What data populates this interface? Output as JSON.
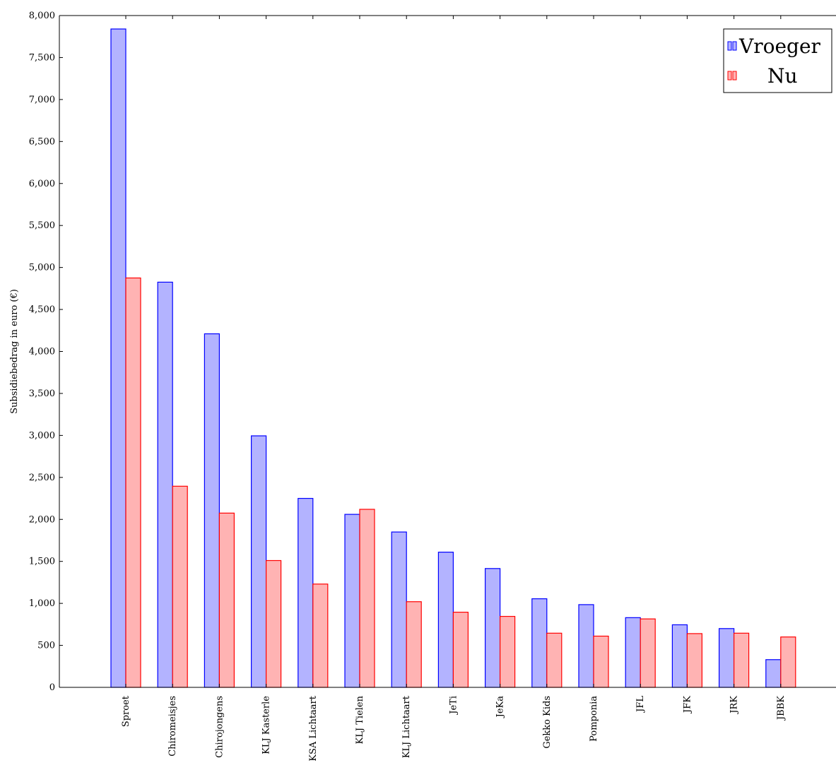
{
  "chart_data": {
    "type": "bar",
    "title": "",
    "xlabel": "",
    "ylabel": "Subsidiebedrag in euro (€)",
    "ylim": [
      0,
      8000
    ],
    "yticks": [
      0,
      500,
      1000,
      1500,
      2000,
      2500,
      3000,
      3500,
      4000,
      4500,
      5000,
      5500,
      6000,
      6500,
      7000,
      7500,
      8000
    ],
    "ytick_labels": [
      "0",
      "500",
      "1,000",
      "1,500",
      "2,000",
      "2,500",
      "3,000",
      "3,500",
      "4,000",
      "4,500",
      "5,000",
      "5,500",
      "6,000",
      "6,500",
      "7,000",
      "7,500",
      "8,000"
    ],
    "categories": [
      "Sproet",
      "Chiromeisjes",
      "Chirojongens",
      "KLJ Kasterle",
      "KSA Lichtaart",
      "KLJ Tielen",
      "KLJ Lichtaart",
      "JeTi",
      "JeKa",
      "Gekko Kids",
      "Pomponia",
      "JFL",
      "JFK",
      "JRK",
      "JBBK"
    ],
    "series": [
      {
        "name": "Vroeger",
        "fill": "#b3b3ff",
        "stroke": "#0000ff",
        "values": [
          7840,
          4825,
          4210,
          2995,
          2250,
          2060,
          1850,
          1610,
          1415,
          1055,
          985,
          830,
          745,
          700,
          330
        ]
      },
      {
        "name": "Nu",
        "fill": "#ffb3b3",
        "stroke": "#ff0000",
        "values": [
          4875,
          2395,
          2075,
          1510,
          1230,
          2120,
          1020,
          895,
          845,
          645,
          610,
          815,
          640,
          645,
          600
        ]
      }
    ],
    "legend_position": "top-right",
    "grid": false
  }
}
